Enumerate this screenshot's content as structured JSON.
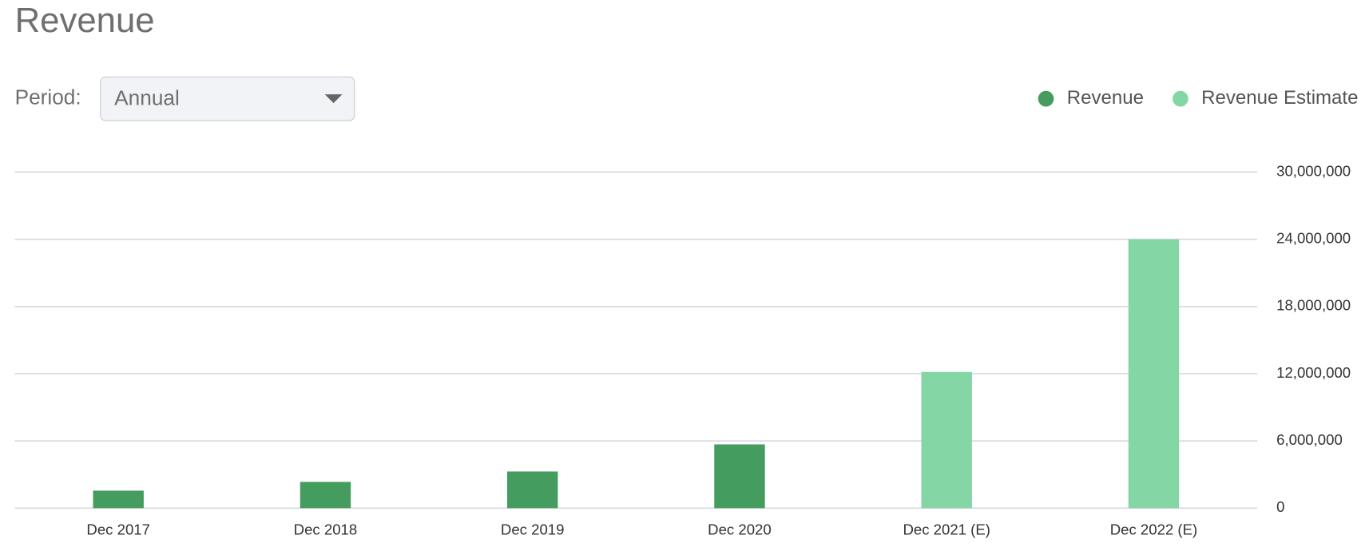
{
  "controls": {
    "period_label": "Period:",
    "period_value": "Annual"
  },
  "chart_data": {
    "type": "bar",
    "title": "Revenue",
    "categories": [
      "Dec 2017",
      "Dec 2018",
      "Dec 2019",
      "Dec 2020",
      "Dec 2021 (E)",
      "Dec 2022 (E)"
    ],
    "series": [
      {
        "name": "Revenue",
        "color": "#459c5f",
        "values": [
          1560000,
          2340000,
          3270000,
          5690000,
          null,
          null
        ]
      },
      {
        "name": "Revenue Estimate",
        "color": "#84d6a5",
        "values": [
          null,
          null,
          null,
          null,
          12160000,
          24000000
        ]
      }
    ],
    "ylim": [
      0,
      30000000
    ],
    "yticks": [
      0,
      {
        "value": 6000000,
        "label": "6,000,000"
      },
      {
        "value": 12000000,
        "label": "12,000,000"
      },
      {
        "value": 18000000,
        "label": "18,000,000"
      },
      {
        "value": 24000000,
        "label": "24,000,000"
      },
      {
        "value": 30000000,
        "label": "30,000,000"
      }
    ],
    "grid": true,
    "legend": "top-right"
  }
}
